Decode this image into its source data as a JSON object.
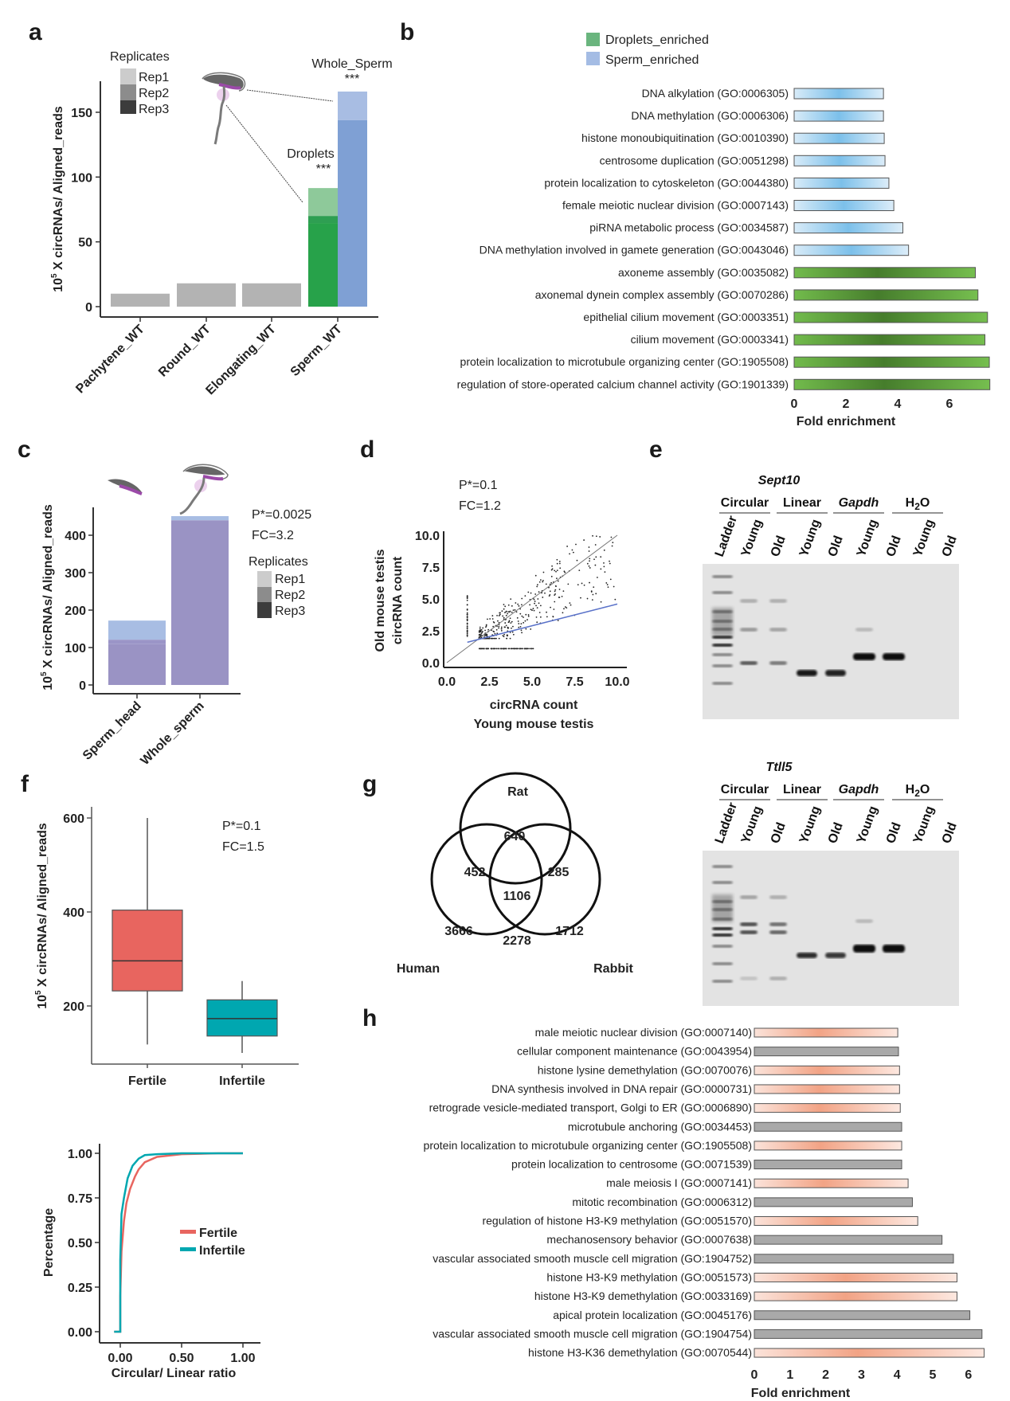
{
  "panels": {
    "a": "a",
    "b": "b",
    "c": "c",
    "d": "d",
    "e": "e",
    "f": "f",
    "g": "g",
    "h": "h"
  },
  "colors": {
    "gray_bar": "#b3b3b3",
    "droplets": "#27a24a",
    "droplets_light": "#8ec99a",
    "sperm": "#7fa0d4",
    "sperm_light": "#a8bde3",
    "purple_bar": "#9a93c4",
    "fertile": "#e8655f",
    "infertile": "#00a7b0",
    "go_green": "#6fb84a",
    "go_blue": "#9fcfee",
    "go_orange": "#f4b49c",
    "go_gray": "#a9a9a9",
    "rep1": "#cccccc",
    "rep2": "#8c8c8c",
    "rep3": "#3c3c3c"
  },
  "chart_data": [
    {
      "id": "a",
      "type": "bar",
      "ylabel_prefix": "10",
      "ylabel_sup": "5",
      "ylabel": " X circRNAs/ Aligned_reads",
      "ylim": [
        0,
        170
      ],
      "yticks": [
        0,
        50,
        100,
        150
      ],
      "categories": [
        "Pachytene_WT",
        "Round_WT",
        "Elongating_WT",
        "Sperm_WT"
      ],
      "values": [
        10,
        18,
        18,
        null
      ],
      "sperm_wt_bars": [
        {
          "name": "Droplets",
          "significance": "***",
          "stacks": [
            64.5,
            70,
            91.5
          ]
        },
        {
          "name": "Whole_Sperm",
          "significance": "***",
          "stacks": [
            144,
            166
          ]
        }
      ],
      "legend": {
        "title": "Replicates",
        "items": [
          "Rep1",
          "Rep2",
          "Rep3"
        ]
      }
    },
    {
      "id": "b",
      "type": "bar",
      "orientation": "horizontal",
      "xlabel": "Fold enrichment",
      "xlim": [
        0,
        7.8
      ],
      "xticks": [
        0,
        2,
        4,
        6
      ],
      "legend": [
        "Droplets_enriched",
        "Sperm_enriched"
      ],
      "series": [
        {
          "label": "DNA alkylation (GO:0006305)",
          "value": 3.45,
          "group": "Sperm_enriched"
        },
        {
          "label": "DNA methylation (GO:0006306)",
          "value": 3.45,
          "group": "Sperm_enriched"
        },
        {
          "label": "histone monoubiquitination (GO:0010390)",
          "value": 3.48,
          "group": "Sperm_enriched"
        },
        {
          "label": "centrosome duplication (GO:0051298)",
          "value": 3.51,
          "group": "Sperm_enriched"
        },
        {
          "label": "protein localization to cytoskeleton (GO:0044380)",
          "value": 3.66,
          "group": "Sperm_enriched"
        },
        {
          "label": "female meiotic nuclear division (GO:0007143)",
          "value": 3.85,
          "group": "Sperm_enriched"
        },
        {
          "label": "piRNA metabolic process (GO:0034587)",
          "value": 4.2,
          "group": "Sperm_enriched"
        },
        {
          "label": "DNA methylation involved in gamete generation (GO:0043046)",
          "value": 4.42,
          "group": "Sperm_enriched"
        },
        {
          "label": "axoneme assembly (GO:0035082)",
          "value": 7.0,
          "group": "Droplets_enriched"
        },
        {
          "label": "axonemal dynein complex assembly (GO:0070286)",
          "value": 7.1,
          "group": "Droplets_enriched"
        },
        {
          "label": "epithelial cilium movement (GO:0003351)",
          "value": 7.47,
          "group": "Droplets_enriched"
        },
        {
          "label": "cilium movement (GO:0003341)",
          "value": 7.37,
          "group": "Droplets_enriched"
        },
        {
          "label": "protein localization to microtubule organizing center (GO:1905508)",
          "value": 7.54,
          "group": "Droplets_enriched"
        },
        {
          "label": "regulation of store-operated calcium channel activity (GO:1901339)",
          "value": 7.56,
          "group": "Droplets_enriched"
        }
      ]
    },
    {
      "id": "c",
      "type": "bar",
      "ylabel_prefix": "10",
      "ylabel_sup": "5",
      "ylabel": " X circRNAs/ Aligned_reads",
      "ylim": [
        0,
        470
      ],
      "yticks": [
        0,
        100,
        200,
        300,
        400
      ],
      "categories": [
        "Sperm_head",
        "Whole_sperm"
      ],
      "stacks": [
        [
          109,
          121,
          172
        ],
        [
          440,
          451
        ]
      ],
      "annotations": [
        "P*=0.0025",
        "FC=3.2"
      ],
      "legend": {
        "title": "Replicates",
        "items": [
          "Rep1",
          "Rep2",
          "Rep3"
        ]
      }
    },
    {
      "id": "d",
      "type": "scatter",
      "annotations": [
        "P*=0.1",
        "FC=1.2"
      ],
      "xlabel": "circRNA count",
      "xlabel2": "Young mouse testis",
      "ylabel": "Old mouse testis",
      "ylabel2": "circRNA count",
      "xlim": [
        0,
        10
      ],
      "ylim": [
        0,
        10
      ],
      "xticks": [
        "0.0",
        "2.5",
        "5.0",
        "7.5",
        "10.0"
      ],
      "yticks": [
        "0.0",
        "2.5",
        "5.0",
        "7.5",
        "10.0"
      ],
      "identity_line": [
        [
          0,
          0
        ],
        [
          10,
          10
        ]
      ],
      "fit_line": [
        [
          1.2,
          1.6
        ],
        [
          10,
          4.6
        ]
      ]
    },
    {
      "id": "f_box",
      "type": "box",
      "ylabel_prefix": "10",
      "ylabel_sup": "5",
      "ylabel": " X circRNAs/ Aligned_reads",
      "ylim": [
        80,
        630
      ],
      "yticks": [
        200,
        400,
        600
      ],
      "categories": [
        "Fertile",
        "Infertile"
      ],
      "boxes": [
        {
          "name": "Fertile",
          "min": 118,
          "q1": 232,
          "median": 296,
          "q3": 404,
          "max": 600
        },
        {
          "name": "Infertile",
          "min": 100,
          "q1": 136,
          "median": 173,
          "q3": 213,
          "max": 253
        }
      ],
      "annotations": [
        "P*=0.1",
        "FC=1.5"
      ]
    },
    {
      "id": "f_ecdf",
      "type": "line",
      "xlabel": "Circular/ Linear ratio",
      "ylabel": "Percentage",
      "xlim": [
        -0.1,
        1.05
      ],
      "ylim": [
        0,
        1
      ],
      "xticks": [
        "0.00",
        "0.50",
        "1.00"
      ],
      "yticks": [
        "0.00",
        "0.25",
        "0.50",
        "0.75",
        "1.00"
      ],
      "series": [
        {
          "name": "Fertile",
          "x": [
            -0.05,
            0.0,
            0.0,
            0.01,
            0.03,
            0.05,
            0.08,
            0.12,
            0.15,
            0.2,
            0.3,
            0.5,
            0.8,
            1.0
          ],
          "y": [
            0,
            0,
            0.2,
            0.45,
            0.62,
            0.72,
            0.8,
            0.87,
            0.91,
            0.95,
            0.98,
            0.995,
            1.0,
            1.0
          ]
        },
        {
          "name": "Infertile",
          "x": [
            -0.05,
            0.0,
            0.0,
            0.01,
            0.03,
            0.06,
            0.1,
            0.15,
            0.2,
            0.3,
            0.5,
            1.0
          ],
          "y": [
            0,
            0,
            0.4,
            0.66,
            0.75,
            0.86,
            0.93,
            0.97,
            0.99,
            0.995,
            1.0,
            1.0
          ]
        }
      ]
    },
    {
      "id": "g",
      "type": "venn",
      "sets": [
        "Rat",
        "Human",
        "Rabbit"
      ],
      "regions": {
        "rat_only": 640,
        "human_only": 3666,
        "rabbit_only": 1712,
        "rat_human": 452,
        "rat_rabbit": 285,
        "human_rabbit": 2278,
        "all": 1106
      }
    },
    {
      "id": "h",
      "type": "bar",
      "orientation": "horizontal",
      "xlabel": "Fold enrichment",
      "xlim": [
        0,
        6.6
      ],
      "xticks": [
        0,
        1,
        2,
        3,
        4,
        5,
        6
      ],
      "series": [
        {
          "label": "male meiotic nuclear division (GO:0007140)",
          "value": 4.02,
          "style": "orange"
        },
        {
          "label": "cellular component maintenance (GO:0043954)",
          "value": 4.04,
          "style": "gray"
        },
        {
          "label": "histone lysine demethylation (GO:0070076)",
          "value": 4.07,
          "style": "orange"
        },
        {
          "label": "DNA synthesis involved in DNA repair (GO:0000731)",
          "value": 4.07,
          "style": "orange"
        },
        {
          "label": "retrograde vesicle-mediated transport, Golgi to ER (GO:0006890)",
          "value": 4.09,
          "style": "orange"
        },
        {
          "label": "microtubule anchoring (GO:0034453)",
          "value": 4.13,
          "style": "gray"
        },
        {
          "label": "protein localization to microtubule organizing center (GO:1905508)",
          "value": 4.13,
          "style": "orange"
        },
        {
          "label": "protein localization to centrosome (GO:0071539)",
          "value": 4.13,
          "style": "gray"
        },
        {
          "label": "male meiosis I (GO:0007141)",
          "value": 4.31,
          "style": "orange"
        },
        {
          "label": "mitotic recombination (GO:0006312)",
          "value": 4.43,
          "style": "gray"
        },
        {
          "label": "regulation of histone H3-K9 methylation (GO:0051570)",
          "value": 4.58,
          "style": "orange"
        },
        {
          "label": "mechanosensory behavior (GO:0007638)",
          "value": 5.26,
          "style": "gray"
        },
        {
          "label": "vascular associated smooth muscle cell migration (GO:1904752)",
          "value": 5.58,
          "style": "gray"
        },
        {
          "label": "histone H3-K9 methylation (GO:0051573)",
          "value": 5.68,
          "style": "orange"
        },
        {
          "label": "histone H3-K9 demethylation (GO:0033169)",
          "value": 5.68,
          "style": "orange"
        },
        {
          "label": "apical protein localization (GO:0045176)",
          "value": 6.04,
          "style": "gray"
        },
        {
          "label": "vascular associated smooth muscle cell migration (GO:1904754)",
          "value": 6.38,
          "style": "gray"
        },
        {
          "label": "histone H3-K36 demethylation (GO:0070544)",
          "value": 6.44,
          "style": "orange"
        }
      ]
    }
  ],
  "gels": [
    {
      "gene": "Sept10",
      "groups": [
        "Circular",
        "Linear",
        "Gapdh",
        "H2O"
      ],
      "lanes": [
        "Ladder",
        "Young",
        "Old",
        "Young",
        "Old",
        "Young",
        "Old",
        "Young",
        "Old"
      ]
    },
    {
      "gene": "Ttll5",
      "groups": [
        "Circular",
        "Linear",
        "Gapdh",
        "H2O"
      ],
      "lanes": [
        "Ladder",
        "Young",
        "Old",
        "Young",
        "Old",
        "Young",
        "Old",
        "Young",
        "Old"
      ]
    }
  ],
  "h2o": {
    "main": "H",
    "sub": "2",
    "tail": "O"
  }
}
